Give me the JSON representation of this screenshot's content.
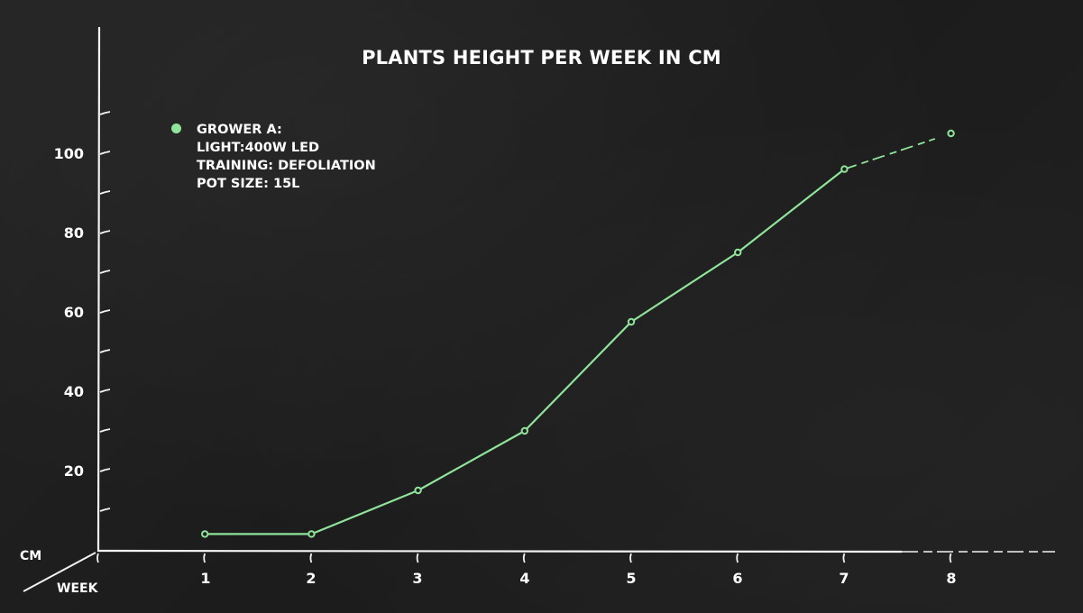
{
  "chart_data": {
    "type": "line",
    "title": "PLANTS HEIGHT PER WEEK IN CM",
    "xlabel": "WEEK",
    "ylabel": "CM",
    "x": [
      1,
      2,
      3,
      4,
      5,
      6,
      7,
      8
    ],
    "categories": [
      "1",
      "2",
      "3",
      "4",
      "5",
      "6",
      "7",
      "8"
    ],
    "series": [
      {
        "name": "GROWER A",
        "color": "#8fe39a",
        "values": [
          4,
          4,
          15,
          30,
          57.5,
          75,
          96,
          105
        ]
      }
    ],
    "y_ticks": [
      "20",
      "40",
      "60",
      "80",
      "100"
    ],
    "y_minor_ticks": [
      10,
      20,
      30,
      40,
      50,
      60,
      70,
      80,
      90,
      100,
      110
    ],
    "ylim": [
      0,
      115
    ],
    "xlim": [
      0,
      9
    ],
    "grid": false,
    "legend_position": "top-left",
    "annotations": [
      "Segment from week 7 to week 8 drawn dashed (projected)"
    ]
  },
  "title": "PLANTS HEIGHT PER WEEK IN CM",
  "legend": {
    "lines": [
      "GROWER A:",
      "LIGHT:400W LED",
      "TRAINING: DEFOLIATION",
      "POT SIZE: 15L"
    ]
  },
  "axes": {
    "y_name": "CM",
    "x_name": "WEEK",
    "y_labels": [
      "100",
      "80",
      "60",
      "40",
      "20"
    ],
    "x_labels": [
      "1",
      "2",
      "3",
      "4",
      "5",
      "6",
      "7",
      "8"
    ]
  },
  "colors": {
    "background": "#1f1f1f",
    "chalk": "#f2f2f2",
    "series": "#8fe39a"
  }
}
